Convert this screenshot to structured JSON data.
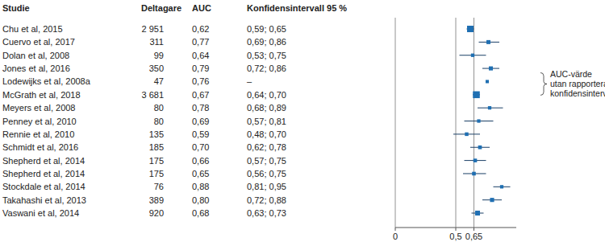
{
  "chart_data": {
    "type": "forest",
    "columns": [
      "Studie",
      "Deltagare",
      "AUC",
      "Konfidensintervall 95 %"
    ],
    "categories": [
      "Chu et al, 2015",
      "Cuervo et al, 2017",
      "Dolan et al, 2008",
      "Jones et al, 2016",
      "Lodewijks et al, 2008a",
      "McGrath et al, 2018",
      "Meyers et al, 2008",
      "Penney et al, 2010",
      "Rennie et al, 2010",
      "Schmidt et al, 2016",
      "Shepherd et al, 2014",
      "Shepherd et al, 2014",
      "Stockdale et al, 2014",
      "Takahashi et al, 2013",
      "Vaswani et al, 2014"
    ],
    "participants": [
      2951,
      311,
      99,
      350,
      47,
      3681,
      80,
      80,
      135,
      185,
      175,
      175,
      76,
      389,
      920
    ],
    "participants_labels": [
      "2 951",
      "311",
      "99",
      "350",
      "47",
      "3 681",
      "80",
      "80",
      "135",
      "185",
      "175",
      "175",
      "76",
      "389",
      "920"
    ],
    "values": [
      0.62,
      0.77,
      0.64,
      0.79,
      0.76,
      0.67,
      0.78,
      0.69,
      0.59,
      0.7,
      0.66,
      0.65,
      0.88,
      0.8,
      0.68
    ],
    "value_labels": [
      "0,62",
      "0,77",
      "0,64",
      "0,79",
      "0,76",
      "0,67",
      "0,78",
      "0,69",
      "0,59",
      "0,70",
      "0,66",
      "0,65",
      "0,88",
      "0,80",
      "0,68"
    ],
    "ci_low": [
      0.59,
      0.69,
      0.53,
      0.72,
      null,
      0.64,
      0.68,
      0.57,
      0.48,
      0.62,
      0.57,
      0.56,
      0.81,
      0.72,
      0.63
    ],
    "ci_high": [
      0.65,
      0.86,
      0.75,
      0.86,
      null,
      0.7,
      0.89,
      0.81,
      0.7,
      0.78,
      0.75,
      0.75,
      0.95,
      0.88,
      0.73
    ],
    "ci_labels": [
      "0,59; 0,65",
      "0,69; 0,86",
      "0,53; 0,75",
      "0,72; 0,86",
      "–",
      "0,64; 0,70",
      "0,68; 0,89",
      "0,57; 0,81",
      "0,48; 0,70",
      "0,62; 0,78",
      "0,57; 0,75",
      "0,56; 0,75",
      "0,81; 0,95",
      "0,72; 0,88",
      "0,63; 0,73"
    ],
    "xlim": [
      0,
      1
    ],
    "xticks": [
      0,
      {
        "value": 0.5,
        "label": "0,5"
      },
      {
        "value": 0.65,
        "label": "0,65"
      }
    ],
    "grid": true,
    "data_labels": true,
    "color": "#1f6fb2",
    "annotation": [
      "AUC-värde",
      "utan rapporterat",
      "konfidensintervall"
    ]
  }
}
